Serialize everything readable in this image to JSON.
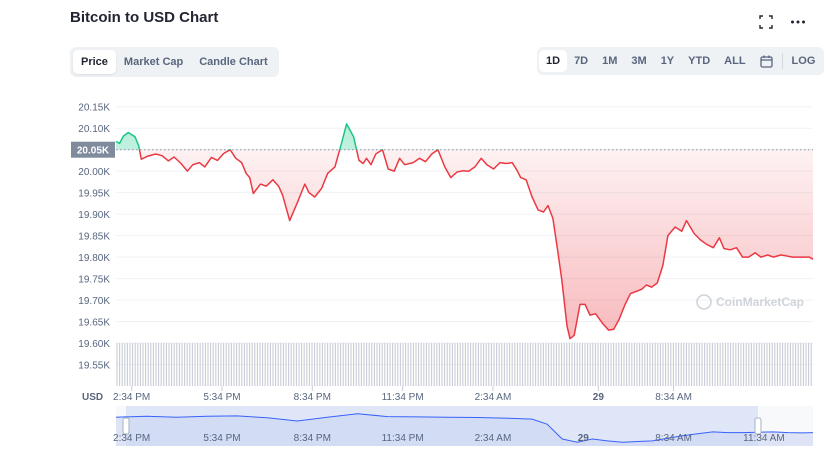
{
  "header": {
    "title": "Bitcoin to USD Chart",
    "fullscreen_icon": "expand-icon",
    "more_icon": "more-horizontal-icon"
  },
  "tabs": [
    {
      "label": "Price",
      "active": true
    },
    {
      "label": "Market Cap",
      "active": false
    },
    {
      "label": "Candle Chart",
      "active": false
    }
  ],
  "ranges": [
    {
      "label": "1D",
      "active": true
    },
    {
      "label": "7D",
      "active": false
    },
    {
      "label": "1M",
      "active": false
    },
    {
      "label": "3M",
      "active": false
    },
    {
      "label": "1Y",
      "active": false
    },
    {
      "label": "YTD",
      "active": false
    },
    {
      "label": "ALL",
      "active": false
    }
  ],
  "calendar_icon": "calendar-icon",
  "log_label": "LOG",
  "colors": {
    "up": "#16c784",
    "down": "#ea3943",
    "navigator_fill": "#dbe3f7",
    "navigator_line": "#3861fb",
    "grid": "#eff2f5"
  },
  "chart_data": {
    "type": "line",
    "currency_label": "USD",
    "watermark": "CoinMarketCap",
    "reference_value": 20050,
    "reference_label": "20.05K",
    "ylim": [
      19500,
      20175
    ],
    "y_ticks": [
      {
        "value": 20150,
        "label": "20.15K"
      },
      {
        "value": 20100,
        "label": "20.10K"
      },
      {
        "value": 20050,
        "label": "20.05K"
      },
      {
        "value": 20000,
        "label": "20.00K"
      },
      {
        "value": 19950,
        "label": "19.95K"
      },
      {
        "value": 19900,
        "label": "19.90K"
      },
      {
        "value": 19850,
        "label": "19.85K"
      },
      {
        "value": 19800,
        "label": "19.80K"
      },
      {
        "value": 19750,
        "label": "19.75K"
      },
      {
        "value": 19700,
        "label": "19.70K"
      },
      {
        "value": 19650,
        "label": "19.65K"
      },
      {
        "value": 19600,
        "label": "19.60K"
      },
      {
        "value": 19550,
        "label": "19.55K"
      }
    ],
    "x_ticks": [
      {
        "t": 1.5,
        "label": "2:34 PM"
      },
      {
        "t": 4.5,
        "label": "5:34 PM"
      },
      {
        "t": 7.5,
        "label": "8:34 PM"
      },
      {
        "t": 10.5,
        "label": "11:34 PM"
      },
      {
        "t": 13.5,
        "label": "2:34 AM"
      },
      {
        "t": 17.0,
        "label": "29"
      },
      {
        "t": 19.5,
        "label": "8:34 AM"
      }
    ],
    "nav_ticks": [
      {
        "t": 1.5,
        "label": "2:34 PM"
      },
      {
        "t": 4.5,
        "label": "5:34 PM"
      },
      {
        "t": 7.5,
        "label": "8:34 PM"
      },
      {
        "t": 10.5,
        "label": "11:34 PM"
      },
      {
        "t": 13.5,
        "label": "2:34 AM"
      },
      {
        "t": 16.5,
        "label": "29"
      },
      {
        "t": 19.5,
        "label": "8:34 AM"
      },
      {
        "t": 22.5,
        "label": "11:34 AM"
      }
    ],
    "x_range": [
      0.98,
      24.13
    ],
    "nav_range": [
      0.98,
      24.13
    ],
    "series": [
      {
        "x": [
          0.98,
          1.1,
          1.23,
          1.39,
          1.61,
          1.73,
          1.82,
          2.04,
          2.3,
          2.51,
          2.72,
          2.91,
          3.14,
          3.35,
          3.53,
          3.75,
          3.93,
          4.15,
          4.35,
          4.55,
          4.77,
          4.96,
          5.15,
          5.3,
          5.42,
          5.54,
          5.78,
          5.97,
          6.19,
          6.38,
          6.51,
          6.75,
          7.02,
          7.25,
          7.39,
          7.58,
          7.81,
          8.01,
          8.25,
          8.45,
          8.64,
          8.87,
          9.05,
          9.19,
          9.3,
          9.45,
          9.61,
          9.83,
          10.02,
          10.22,
          10.4,
          10.57,
          10.85,
          11.06,
          11.26,
          11.47,
          11.67,
          11.9,
          12.1,
          12.31,
          12.5,
          12.69,
          12.9,
          13.11,
          13.3,
          13.52,
          13.73,
          13.94,
          14.14,
          14.3,
          14.42,
          14.6,
          14.8,
          15.0,
          15.18,
          15.33,
          15.49,
          15.65,
          15.79,
          15.96,
          16.06,
          16.2,
          16.39,
          16.56,
          16.72,
          16.91,
          17.15,
          17.34,
          17.51,
          17.69,
          17.89,
          18.07,
          18.25,
          18.44,
          18.6,
          18.77,
          18.96,
          19.14,
          19.31,
          19.55,
          19.77,
          19.93,
          20.18,
          20.39,
          20.59,
          20.82,
          21.02,
          21.17,
          21.38,
          21.59,
          21.79,
          21.99,
          22.21,
          22.4,
          22.63,
          22.81,
          23.06,
          23.23,
          23.45,
          23.62,
          23.83,
          24.01,
          24.13
        ],
        "y": [
          20069,
          20065,
          20082,
          20090,
          20080,
          20060,
          20028,
          20035,
          20040,
          20036,
          20024,
          20033,
          20018,
          20000,
          20015,
          20020,
          20010,
          20032,
          20025,
          20041,
          20050,
          20030,
          20020,
          19995,
          19985,
          19948,
          19970,
          19965,
          19980,
          19965,
          19945,
          19885,
          19930,
          19970,
          19950,
          19940,
          19960,
          19995,
          20010,
          20060,
          20110,
          20080,
          20025,
          20018,
          20030,
          20015,
          20040,
          20050,
          20005,
          20000,
          20030,
          20015,
          20020,
          20030,
          20022,
          20040,
          20050,
          20010,
          19985,
          19998,
          20001,
          20000,
          20010,
          20030,
          20015,
          20005,
          20020,
          20018,
          20020,
          20002,
          19985,
          19980,
          19940,
          19910,
          19905,
          19920,
          19890,
          19815,
          19745,
          19640,
          19610,
          19618,
          19690,
          19690,
          19665,
          19668,
          19645,
          19630,
          19632,
          19655,
          19690,
          19715,
          19720,
          19725,
          19735,
          19730,
          19740,
          19780,
          19850,
          19870,
          19860,
          19885,
          19855,
          19840,
          19830,
          19822,
          19845,
          19820,
          19817,
          19822,
          19800,
          19800,
          19810,
          19800,
          19805,
          19800,
          19805,
          19803,
          19800,
          19800,
          19800,
          19800,
          19795
        ]
      }
    ],
    "navigator": {
      "x": [
        0.98,
        2.0,
        3.0,
        4.0,
        5.0,
        6.0,
        7.0,
        8.0,
        9.0,
        10.0,
        11.0,
        12.0,
        13.0,
        14.0,
        14.8,
        15.3,
        15.8,
        16.3,
        16.8,
        17.3,
        17.8,
        18.3,
        18.8,
        19.3,
        19.8,
        20.3,
        20.8,
        21.3,
        21.8,
        22.3,
        22.8,
        23.3,
        23.8,
        24.13
      ],
      "y": [
        20030,
        20045,
        20030,
        20045,
        20050,
        20020,
        19970,
        20030,
        20085,
        20040,
        20035,
        20030,
        20025,
        20015,
        20000,
        19920,
        19690,
        19640,
        19690,
        19660,
        19640,
        19650,
        19660,
        19700,
        19740,
        19770,
        19800,
        19790,
        19790,
        19795,
        19800,
        19790,
        19785,
        19790
      ]
    }
  }
}
